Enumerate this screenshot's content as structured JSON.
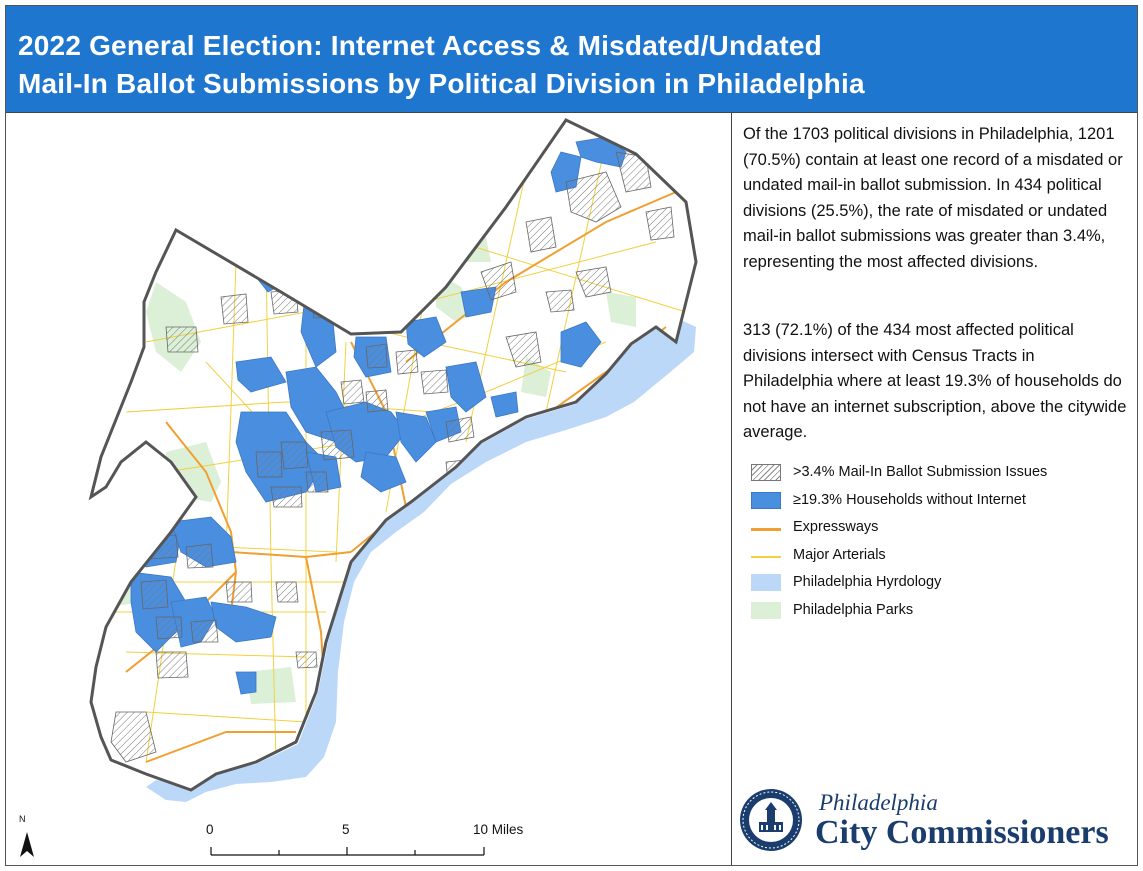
{
  "title": {
    "line1": "2022 General Election: Internet Access & Misdated/Undated",
    "line2": "Mail-In Ballot Submissions by Political Division in Philadelphia"
  },
  "description": {
    "paragraph1": "Of the 1703 political divisions in Philadelphia, 1201 (70.5%) contain at least one record of a misdated or undated mail-in ballot submission. In 434 political divisions (25.5%), the rate of misdated or undated mail-in ballot submissions was greater than 3.4%, representing the most affected divisions.",
    "paragraph2": "313 (72.1%) of the 434 most affected political divisions intersect with Census Tracts in Philadelphia where at least 19.3% of households do not have an internet subscription, above the citywide average."
  },
  "legend": [
    {
      "label": ">3.4% Mail-In Ballot Submission Issues",
      "symbol": "hatch",
      "color": "#888888"
    },
    {
      "label": "≥19.3% Households without Internet",
      "symbol": "fill",
      "color": "#4a8ee0"
    },
    {
      "label": "Expressways",
      "symbol": "line",
      "color": "#f0a030"
    },
    {
      "label": "Major Arterials",
      "symbol": "line",
      "color": "#f2d040"
    },
    {
      "label": "Philadelphia Hyrdology",
      "symbol": "fill",
      "color": "#bcd8f8"
    },
    {
      "label": "Philadelphia Parks",
      "symbol": "fill",
      "color": "#dcf0d8"
    }
  ],
  "scale_bar": {
    "ticks": [
      "0",
      "5",
      "10 Miles"
    ]
  },
  "north_arrow": {
    "label": "N",
    "icon": "north-arrow-icon"
  },
  "logo": {
    "line1": "Philadelphia",
    "line2": "City Commissioners",
    "color": "#1a3d6e"
  },
  "colors": {
    "title_bar": "#1f76cf",
    "internet_fill": "#4a8ee0",
    "water": "#bcd8f8",
    "parks": "#dcf0d8",
    "city_outline": "#555555"
  }
}
